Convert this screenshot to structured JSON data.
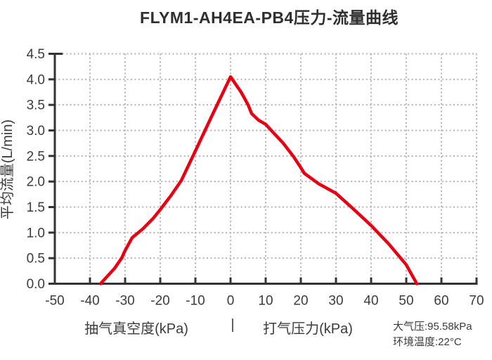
{
  "chart_data": {
    "type": "line",
    "title": "FLYM1-AH4EA-PB4压力-流量曲线",
    "ylabel": "平均流量(L/min)",
    "xlabel_left": "抽气真空度(kPa)",
    "xlabel_separator": "|",
    "xlabel_right": "打气压力(kPa)",
    "xlim": [
      -50,
      70
    ],
    "ylim": [
      0,
      4.5
    ],
    "x_ticks": [
      -50,
      -40,
      -30,
      -20,
      -10,
      0,
      10,
      20,
      30,
      40,
      50,
      60,
      70
    ],
    "y_ticks": [
      0.0,
      0.5,
      1.0,
      1.5,
      2.0,
      2.5,
      3.0,
      3.5,
      4.0,
      4.5
    ],
    "grid": true,
    "legend": "none",
    "series": [
      {
        "name": "压力-流量曲线",
        "color": "#e60012",
        "points": [
          [
            -37,
            0.0
          ],
          [
            -35,
            0.15
          ],
          [
            -33,
            0.3
          ],
          [
            -31,
            0.5
          ],
          [
            -30,
            0.65
          ],
          [
            -28,
            0.9
          ],
          [
            -25,
            1.07
          ],
          [
            -22,
            1.28
          ],
          [
            -20,
            1.45
          ],
          [
            -17,
            1.72
          ],
          [
            -14,
            2.02
          ],
          [
            -10,
            2.6
          ],
          [
            -5,
            3.33
          ],
          [
            0,
            4.05
          ],
          [
            3,
            3.75
          ],
          [
            5,
            3.5
          ],
          [
            6,
            3.33
          ],
          [
            8,
            3.2
          ],
          [
            10,
            3.12
          ],
          [
            12,
            2.97
          ],
          [
            15,
            2.75
          ],
          [
            18,
            2.48
          ],
          [
            20,
            2.27
          ],
          [
            21,
            2.16
          ],
          [
            25,
            1.96
          ],
          [
            30,
            1.77
          ],
          [
            35,
            1.46
          ],
          [
            40,
            1.14
          ],
          [
            45,
            0.78
          ],
          [
            50,
            0.37
          ],
          [
            53,
            0.0
          ]
        ]
      }
    ],
    "annotations": {
      "atmospheric_pressure": "大气压:95.58kPa",
      "ambient_temperature": "环境温度:22°C"
    },
    "colors": {
      "curve": "#e60012",
      "axis": "#333333",
      "grid": "#b4b2b2",
      "text": "#3b3b3b"
    }
  }
}
